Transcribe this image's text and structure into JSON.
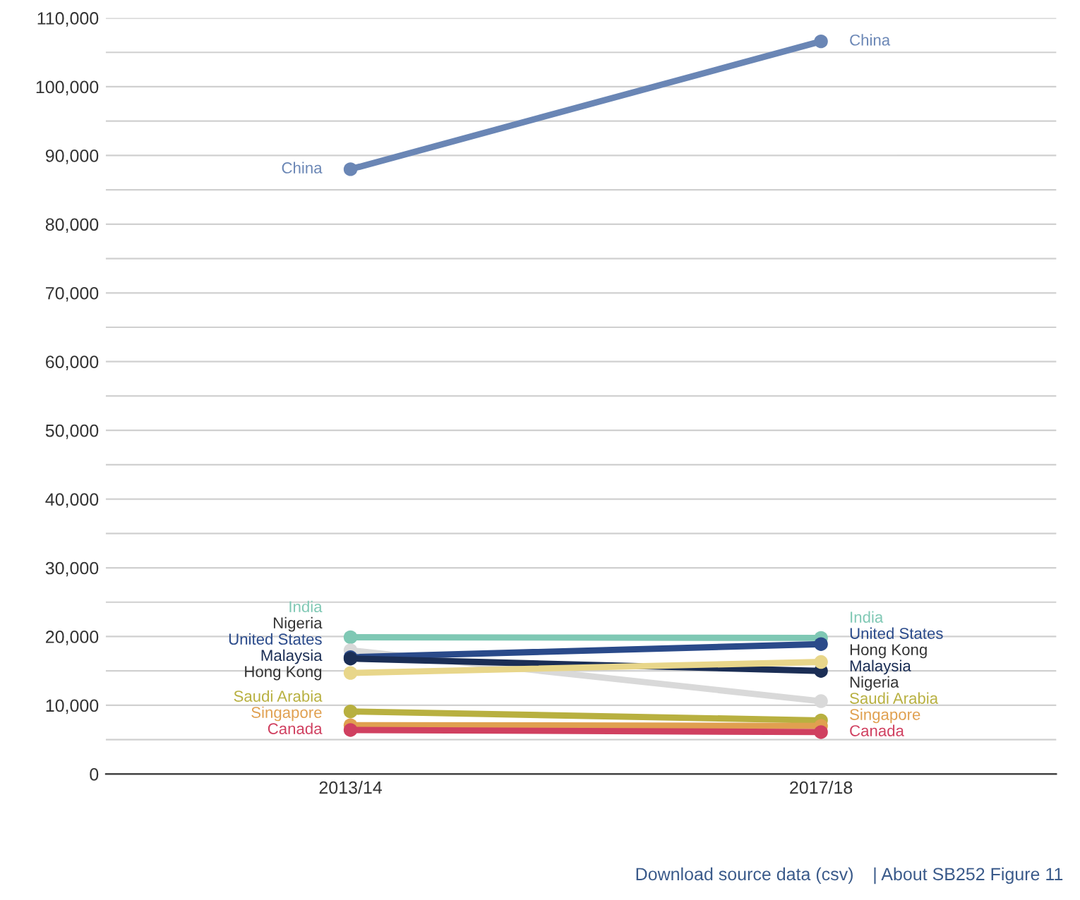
{
  "chart_data": {
    "type": "line",
    "categories": [
      "2013/14",
      "2017/18"
    ],
    "series": [
      {
        "name": "China",
        "color": "#6a86b5",
        "values": [
          88000,
          106600
        ]
      },
      {
        "name": "India",
        "color": "#7fc8b4",
        "values": [
          19900,
          19800
        ]
      },
      {
        "name": "Nigeria",
        "color": "#d9d9d9",
        "values": [
          18000,
          10600
        ]
      },
      {
        "name": "United States",
        "color": "#2a4a8a",
        "values": [
          17000,
          18900
        ]
      },
      {
        "name": "Malaysia",
        "color": "#1b2e55",
        "values": [
          16800,
          15000
        ]
      },
      {
        "name": "Hong Kong",
        "color": "#e8d68a",
        "values": [
          14700,
          16300
        ]
      },
      {
        "name": "Saudi Arabia",
        "color": "#b8b040",
        "values": [
          9100,
          7800
        ]
      },
      {
        "name": "Singapore",
        "color": "#e0a050",
        "values": [
          7100,
          7000
        ]
      },
      {
        "name": "Canada",
        "color": "#d04060",
        "values": [
          6400,
          6100
        ]
      }
    ],
    "ylim": [
      0,
      110000
    ],
    "yticks": [
      {
        "value": 0,
        "label": "0"
      },
      {
        "value": 5000,
        "label": null
      },
      {
        "value": 10000,
        "label": "10,000"
      },
      {
        "value": 15000,
        "label": null
      },
      {
        "value": 20000,
        "label": "20,000"
      },
      {
        "value": 25000,
        "label": null
      },
      {
        "value": 30000,
        "label": "30,000"
      },
      {
        "value": 35000,
        "label": null
      },
      {
        "value": 40000,
        "label": "40,000"
      },
      {
        "value": 45000,
        "label": null
      },
      {
        "value": 50000,
        "label": "50,000"
      },
      {
        "value": 55000,
        "label": null
      },
      {
        "value": 60000,
        "label": "60,000"
      },
      {
        "value": 65000,
        "label": null
      },
      {
        "value": 70000,
        "label": "70,000"
      },
      {
        "value": 75000,
        "label": null
      },
      {
        "value": 80000,
        "label": "80,000"
      },
      {
        "value": 85000,
        "label": null
      },
      {
        "value": 90000,
        "label": "90,000"
      },
      {
        "value": 95000,
        "label": null
      },
      {
        "value": 100000,
        "label": "100,000"
      },
      {
        "value": 105000,
        "label": null
      },
      {
        "value": 110000,
        "label": "110,000"
      }
    ],
    "grid": "y",
    "legend": false,
    "marker": "circle",
    "line_style": "solid",
    "annotations": [
      "Download source data (csv)",
      "| About SB252 Figure 11"
    ]
  }
}
